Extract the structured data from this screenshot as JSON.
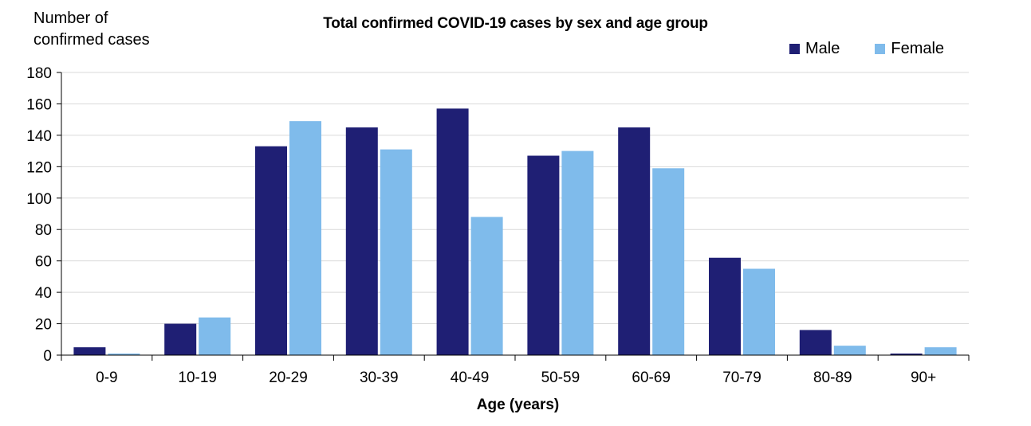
{
  "chart_data": {
    "type": "bar",
    "title": "Total confirmed COVID-19 cases by sex and age group",
    "ylabel_lines": [
      "Number of",
      "confirmed cases"
    ],
    "xlabel": "Age (years)",
    "categories": [
      "0-9",
      "10-19",
      "20-29",
      "30-39",
      "40-49",
      "50-59",
      "60-69",
      "70-79",
      "80-89",
      "90+"
    ],
    "series": [
      {
        "name": "Male",
        "color": "#1f1f74",
        "values": [
          5,
          20,
          133,
          145,
          157,
          127,
          145,
          62,
          16,
          1
        ]
      },
      {
        "name": "Female",
        "color": "#7fbbeb",
        "values": [
          1,
          24,
          149,
          131,
          88,
          130,
          119,
          55,
          6,
          5
        ]
      }
    ],
    "ylim": [
      0,
      180
    ],
    "yticks": [
      0,
      20,
      40,
      60,
      80,
      100,
      120,
      140,
      160,
      180
    ],
    "grid": true,
    "legend_position": "top-right"
  }
}
